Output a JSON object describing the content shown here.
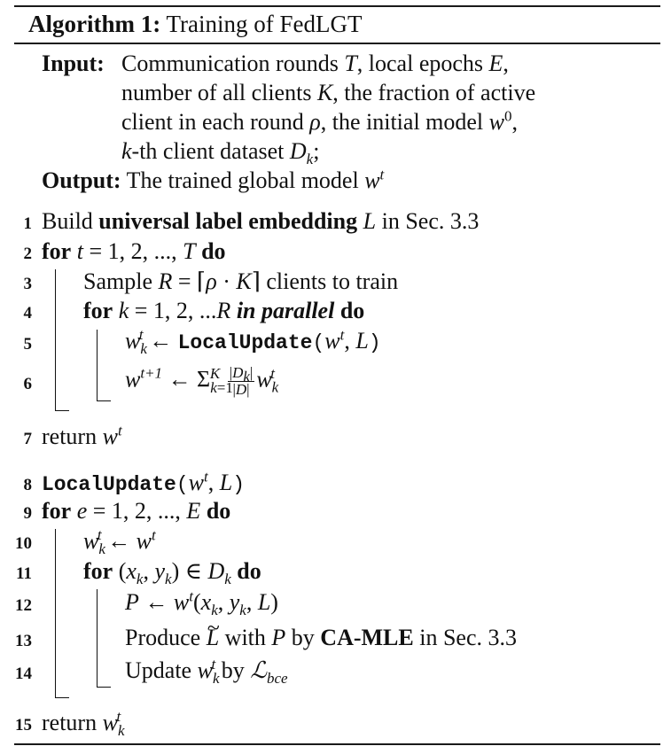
{
  "algorithm": {
    "label": "Algorithm 1:",
    "title": "Training of FedLGT"
  },
  "input": {
    "label": "Input:",
    "line1_a": "Communication rounds ",
    "line1_b": ", local epochs ",
    "line2_a": "number of all clients ",
    "line2_b": ", the fraction of active",
    "line3_a": "client in each round ",
    "line3_b": ", the initial model ",
    "line4_a": "-th client dataset "
  },
  "output": {
    "label": "Output:",
    "text": "The trained global model "
  },
  "lines": {
    "n1": "1",
    "n2": "2",
    "n3": "3",
    "n4": "4",
    "n5": "5",
    "n6": "6",
    "n7": "7",
    "n8": "8",
    "n9": "9",
    "n10": "10",
    "n11": "11",
    "n12": "12",
    "n13": "13",
    "n14": "14",
    "n15": "15"
  },
  "step1": {
    "pre": "Build ",
    "bold": "universal label embedding",
    "post": " in Sec. 3.3"
  },
  "kw": {
    "for": "for",
    "do": "do",
    "return": "return",
    "in_parallel": "in parallel"
  },
  "step3": {
    "pre": "Sample ",
    "post": " clients to train"
  },
  "func": {
    "name": "LocalUpdate"
  },
  "step13": {
    "pre": "Produce ",
    "mid": " with ",
    "by": " by ",
    "bold": "CA-MLE",
    "post": " in Sec. 3.3"
  },
  "step14": {
    "pre": "Update ",
    "mid": " by "
  }
}
